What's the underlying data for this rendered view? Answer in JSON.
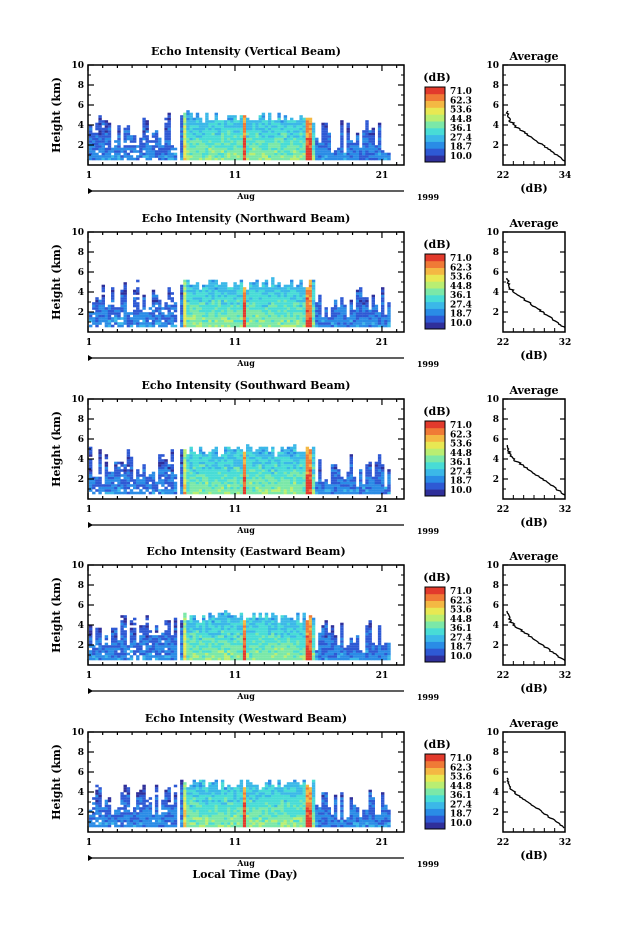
{
  "chart_data": [
    {
      "type": "heatmap",
      "title": "Echo Intensity (Vertical Beam)",
      "ylabel": "Height (km)",
      "x_ticks": [
        "1",
        "11",
        "21"
      ],
      "x_month": "Aug",
      "year": "1999",
      "ylim": [
        0,
        10
      ],
      "y_ticks": [
        "2",
        "4",
        "6",
        "8",
        "10"
      ],
      "colorbar": {
        "unit": "(dB)",
        "labels": [
          "71.0",
          "62.3",
          "53.6",
          "44.8",
          "36.1",
          "27.4",
          "18.7",
          "10.0"
        ]
      },
      "average": {
        "title": "Average",
        "xlabel": "(dB)",
        "xlim": [
          "22",
          "34"
        ],
        "y_ticks": [
          "2",
          "4",
          "6",
          "8",
          "10"
        ]
      }
    },
    {
      "type": "heatmap",
      "title": "Echo Intensity (Northward Beam)",
      "ylabel": "Height (km)",
      "x_ticks": [
        "1",
        "11",
        "21"
      ],
      "x_month": "Aug",
      "year": "1999",
      "ylim": [
        0,
        10
      ],
      "y_ticks": [
        "2",
        "4",
        "6",
        "8",
        "10"
      ],
      "colorbar": {
        "unit": "(dB)",
        "labels": [
          "71.0",
          "62.3",
          "53.6",
          "44.8",
          "36.1",
          "27.4",
          "18.7",
          "10.0"
        ]
      },
      "average": {
        "title": "Average",
        "xlabel": "(dB)",
        "xlim": [
          "22",
          "32"
        ],
        "y_ticks": [
          "2",
          "4",
          "6",
          "8",
          "10"
        ]
      }
    },
    {
      "type": "heatmap",
      "title": "Echo Intensity (Southward Beam)",
      "ylabel": "Height (km)",
      "x_ticks": [
        "1",
        "11",
        "21"
      ],
      "x_month": "Aug",
      "year": "1999",
      "ylim": [
        0,
        10
      ],
      "y_ticks": [
        "2",
        "4",
        "6",
        "8",
        "10"
      ],
      "colorbar": {
        "unit": "(dB)",
        "labels": [
          "71.0",
          "62.3",
          "53.6",
          "44.8",
          "36.1",
          "27.4",
          "18.7",
          "10.0"
        ]
      },
      "average": {
        "title": "Average",
        "xlabel": "(dB)",
        "xlim": [
          "22",
          "32"
        ],
        "y_ticks": [
          "2",
          "4",
          "6",
          "8",
          "10"
        ]
      }
    },
    {
      "type": "heatmap",
      "title": "Echo Intensity (Eastward Beam)",
      "ylabel": "Height (km)",
      "x_ticks": [
        "1",
        "11",
        "21"
      ],
      "x_month": "Aug",
      "year": "1999",
      "ylim": [
        0,
        10
      ],
      "y_ticks": [
        "2",
        "4",
        "6",
        "8",
        "10"
      ],
      "colorbar": {
        "unit": "(dB)",
        "labels": [
          "71.0",
          "62.3",
          "53.6",
          "44.8",
          "36.1",
          "27.4",
          "18.7",
          "10.0"
        ]
      },
      "average": {
        "title": "Average",
        "xlabel": "(dB)",
        "xlim": [
          "22",
          "32"
        ],
        "y_ticks": [
          "2",
          "4",
          "6",
          "8",
          "10"
        ]
      }
    },
    {
      "type": "heatmap",
      "title": "Echo Intensity (Westward Beam)",
      "ylabel": "Height (km)",
      "x_ticks": [
        "1",
        "11",
        "21"
      ],
      "x_month": "Aug",
      "year": "1999",
      "ylim": [
        0,
        10
      ],
      "y_ticks": [
        "2",
        "4",
        "6",
        "8",
        "10"
      ],
      "colorbar": {
        "unit": "(dB)",
        "labels": [
          "71.0",
          "62.3",
          "53.6",
          "44.8",
          "36.1",
          "27.4",
          "18.7",
          "10.0"
        ]
      },
      "average": {
        "title": "Average",
        "xlabel": "(dB)",
        "xlim": [
          "22",
          "32"
        ],
        "y_ticks": [
          "2",
          "4",
          "6",
          "8",
          "10"
        ]
      }
    }
  ],
  "xlabel": "Local Time (Day)",
  "colormap": [
    "#2f2f9a",
    "#2e59d4",
    "#2a8ce6",
    "#3bb8e8",
    "#48dcd6",
    "#7be8a8",
    "#b9ee72",
    "#e8e853",
    "#f4b843",
    "#f07a36",
    "#e23a2c"
  ]
}
